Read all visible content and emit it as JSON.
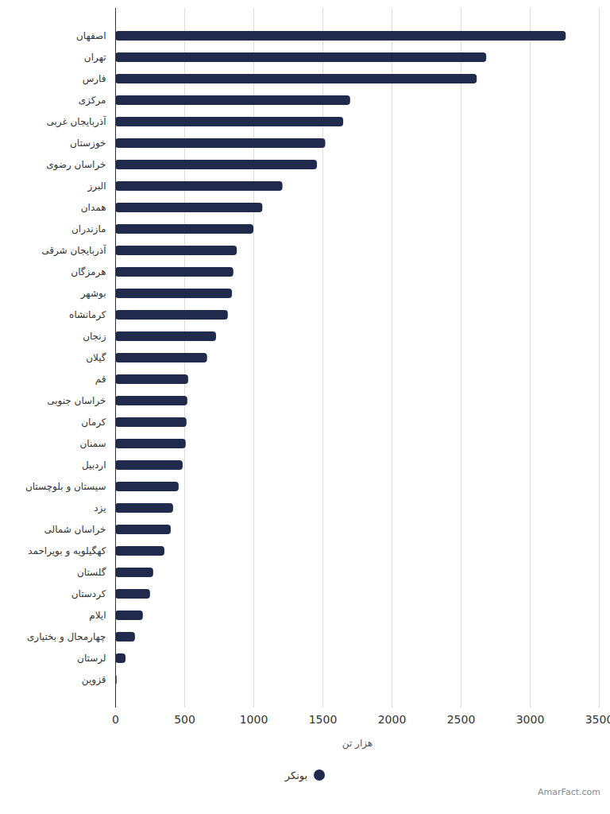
{
  "chart_data": {
    "type": "bar",
    "orientation": "horizontal",
    "categories": [
      "اصفهان",
      "تهران",
      "فارس",
      "مرکزی",
      "آذربایجان غربی",
      "خوزستان",
      "خراسان رضوی",
      "البرز",
      "همدان",
      "مازندران",
      "آذربایجان شرقی",
      "هرمزگان",
      "بوشهر",
      "کرمانشاه",
      "زنجان",
      "گیلان",
      "قم",
      "خراسان جنوبی",
      "کرمان",
      "سمنان",
      "اردبیل",
      "سیستان و بلوچستان",
      "یزد",
      "خراسان شمالی",
      "کهگیلویه و بویراحمد",
      "گلستان",
      "کردستان",
      "ایلام",
      "چهارمحال و بختیاری",
      "لرستان",
      "قزوین"
    ],
    "series": [
      {
        "name": "بونکر",
        "color": "#1f2a4d",
        "values": [
          3260,
          2685,
          2616,
          1700,
          1650,
          1520,
          1460,
          1210,
          1065,
          1000,
          880,
          855,
          845,
          815,
          730,
          665,
          528,
          522,
          516,
          510,
          488,
          459,
          419,
          402,
          356,
          275,
          252,
          200,
          143,
          75,
          10
        ]
      }
    ],
    "xlabel": "هزار تن",
    "xlim": [
      0,
      3500
    ],
    "xticks": [
      0,
      500,
      1000,
      1500,
      2000,
      2500,
      3000,
      3500
    ],
    "grid": true,
    "legend": "bottom",
    "caption": "AmarFact.com"
  }
}
